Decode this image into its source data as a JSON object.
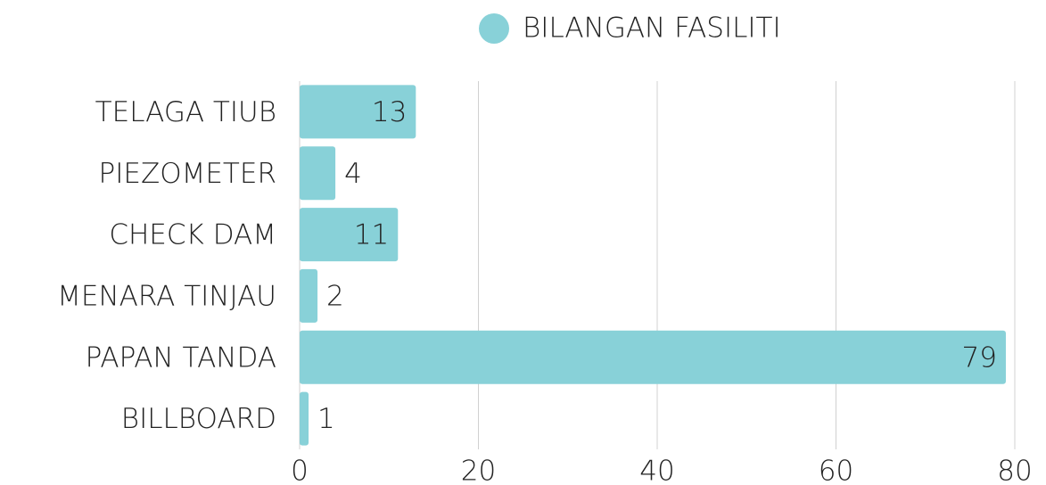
{
  "chart_data": {
    "type": "bar",
    "orientation": "horizontal",
    "categories": [
      "TELAGA TIUB",
      "PIEZOMETER",
      "CHECK DAM",
      "MENARA TINJAU",
      "PAPAN TANDA",
      "BILLBOARD"
    ],
    "series": [
      {
        "name": "BILANGAN FASILITI",
        "color": "#88d1d8",
        "values": [
          13,
          4,
          11,
          2,
          79,
          1
        ]
      }
    ],
    "xlim": [
      0,
      80
    ],
    "xticks": [
      0,
      20,
      40,
      60,
      80
    ],
    "grid": true,
    "legend": "top"
  }
}
